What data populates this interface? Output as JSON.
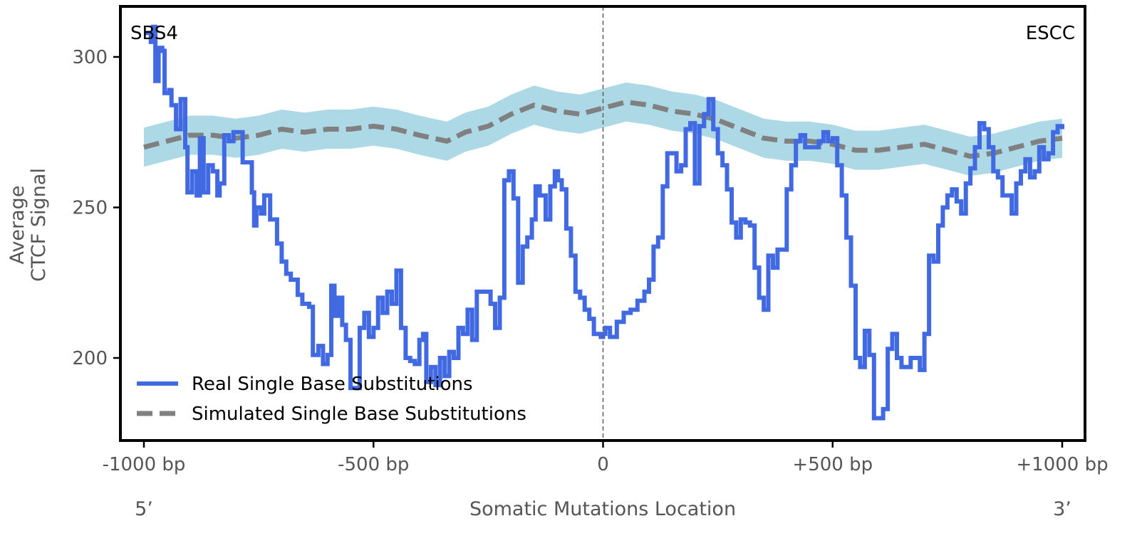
{
  "chart_data": {
    "type": "line",
    "title": "",
    "xlabel": "Somatic Mutations Location",
    "ylabel_lines": [
      "Average",
      "CTCF Signal"
    ],
    "xlim": [
      -1000,
      1000
    ],
    "ylim": [
      172,
      317
    ],
    "x_ticks": [
      -1000,
      -500,
      0,
      500,
      1000
    ],
    "x_tick_labels": [
      "-1000 bp",
      "-500 bp",
      "0",
      "+500 bp",
      "+1000 bp"
    ],
    "y_ticks": [
      200,
      250,
      300
    ],
    "y_tick_labels": [
      "200",
      "250",
      "300"
    ],
    "strand_labels": {
      "left": "5’",
      "right": "3’"
    },
    "corner_labels": {
      "left": "SBS4",
      "right": "ESCC"
    },
    "center_line_x": 0,
    "legend": {
      "position": "lower-left",
      "entries": [
        {
          "label": "Real Single Base Substitutions",
          "color": "#4169e1",
          "style": "solid"
        },
        {
          "label": "Simulated Single Base Substitutions",
          "color": "#808080",
          "style": "dashed"
        }
      ]
    },
    "series": [
      {
        "name": "Real Single Base Substitutions",
        "color": "#4169e1",
        "points": [
          [
            -1000,
            308
          ],
          [
            -985,
            305
          ],
          [
            -980,
            310
          ],
          [
            -975,
            292
          ],
          [
            -968,
            303
          ],
          [
            -960,
            302
          ],
          [
            -955,
            288
          ],
          [
            -945,
            289
          ],
          [
            -940,
            284
          ],
          [
            -930,
            276
          ],
          [
            -920,
            286
          ],
          [
            -910,
            270
          ],
          [
            -905,
            255
          ],
          [
            -895,
            262
          ],
          [
            -885,
            254
          ],
          [
            -878,
            273
          ],
          [
            -870,
            255
          ],
          [
            -860,
            264
          ],
          [
            -850,
            262
          ],
          [
            -840,
            254
          ],
          [
            -835,
            258
          ],
          [
            -825,
            274
          ],
          [
            -815,
            272
          ],
          [
            -805,
            275
          ],
          [
            -790,
            275
          ],
          [
            -785,
            265
          ],
          [
            -770,
            265
          ],
          [
            -765,
            255
          ],
          [
            -760,
            244
          ],
          [
            -755,
            250
          ],
          [
            -745,
            248
          ],
          [
            -738,
            254
          ],
          [
            -725,
            246
          ],
          [
            -710,
            238
          ],
          [
            -700,
            232
          ],
          [
            -690,
            228
          ],
          [
            -680,
            226
          ],
          [
            -665,
            221
          ],
          [
            -655,
            218
          ],
          [
            -640,
            217
          ],
          [
            -632,
            201
          ],
          [
            -620,
            204
          ],
          [
            -610,
            198
          ],
          [
            -600,
            201
          ],
          [
            -592,
            224
          ],
          [
            -585,
            214
          ],
          [
            -577,
            220
          ],
          [
            -568,
            211
          ],
          [
            -560,
            206
          ],
          [
            -550,
            190
          ],
          [
            -540,
            190
          ],
          [
            -530,
            210
          ],
          [
            -520,
            215
          ],
          [
            -510,
            207
          ],
          [
            -500,
            210
          ],
          [
            -490,
            220
          ],
          [
            -480,
            215
          ],
          [
            -470,
            222
          ],
          [
            -460,
            218
          ],
          [
            -450,
            229
          ],
          [
            -440,
            210
          ],
          [
            -430,
            200
          ],
          [
            -420,
            199
          ],
          [
            -410,
            198
          ],
          [
            -400,
            206
          ],
          [
            -392,
            208
          ],
          [
            -385,
            192
          ],
          [
            -375,
            197
          ],
          [
            -365,
            191
          ],
          [
            -355,
            200
          ],
          [
            -345,
            194
          ],
          [
            -335,
            202
          ],
          [
            -325,
            200
          ],
          [
            -315,
            210
          ],
          [
            -305,
            208
          ],
          [
            -295,
            216
          ],
          [
            -285,
            206
          ],
          [
            -275,
            222
          ],
          [
            -265,
            222
          ],
          [
            -255,
            222
          ],
          [
            -245,
            218
          ],
          [
            -235,
            210
          ],
          [
            -225,
            220
          ],
          [
            -215,
            259
          ],
          [
            -205,
            262
          ],
          [
            -195,
            253
          ],
          [
            -185,
            225
          ],
          [
            -175,
            237
          ],
          [
            -165,
            240
          ],
          [
            -155,
            246
          ],
          [
            -147,
            257
          ],
          [
            -138,
            254
          ],
          [
            -125,
            246
          ],
          [
            -115,
            257
          ],
          [
            -105,
            262
          ],
          [
            -98,
            259
          ],
          [
            -90,
            256
          ],
          [
            -80,
            243
          ],
          [
            -70,
            234
          ],
          [
            -60,
            222
          ],
          [
            -50,
            220
          ],
          [
            -40,
            216
          ],
          [
            -30,
            213
          ],
          [
            -20,
            208
          ],
          [
            -10,
            208
          ],
          [
            -5,
            207
          ],
          [
            0,
            208
          ],
          [
            5,
            210
          ],
          [
            15,
            207
          ],
          [
            30,
            212
          ],
          [
            45,
            215
          ],
          [
            60,
            216
          ],
          [
            75,
            219
          ],
          [
            90,
            222
          ],
          [
            100,
            226
          ],
          [
            110,
            237
          ],
          [
            120,
            240
          ],
          [
            130,
            257
          ],
          [
            140,
            268
          ],
          [
            150,
            268
          ],
          [
            160,
            262
          ],
          [
            170,
            264
          ],
          [
            180,
            276
          ],
          [
            190,
            278
          ],
          [
            200,
            258
          ],
          [
            210,
            277
          ],
          [
            220,
            281
          ],
          [
            230,
            286
          ],
          [
            240,
            276
          ],
          [
            250,
            268
          ],
          [
            260,
            264
          ],
          [
            270,
            256
          ],
          [
            280,
            245
          ],
          [
            290,
            240
          ],
          [
            300,
            246
          ],
          [
            310,
            245
          ],
          [
            320,
            244
          ],
          [
            330,
            230
          ],
          [
            340,
            220
          ],
          [
            350,
            216
          ],
          [
            360,
            234
          ],
          [
            370,
            230
          ],
          [
            380,
            236
          ],
          [
            390,
            236
          ],
          [
            400,
            256
          ],
          [
            410,
            264
          ],
          [
            420,
            272
          ],
          [
            430,
            274
          ],
          [
            440,
            270
          ],
          [
            450,
            270
          ],
          [
            460,
            270
          ],
          [
            470,
            272
          ],
          [
            480,
            275
          ],
          [
            490,
            272
          ],
          [
            500,
            273
          ],
          [
            510,
            264
          ],
          [
            520,
            254
          ],
          [
            530,
            240
          ],
          [
            540,
            224
          ],
          [
            550,
            200
          ],
          [
            560,
            197
          ],
          [
            570,
            209
          ],
          [
            580,
            201
          ],
          [
            590,
            180
          ],
          [
            600,
            180
          ],
          [
            610,
            183
          ],
          [
            620,
            203
          ],
          [
            630,
            208
          ],
          [
            640,
            200
          ],
          [
            650,
            197
          ],
          [
            660,
            197
          ],
          [
            670,
            200
          ],
          [
            680,
            200
          ],
          [
            690,
            196
          ],
          [
            700,
            208
          ],
          [
            710,
            234
          ],
          [
            720,
            232
          ],
          [
            730,
            244
          ],
          [
            740,
            250
          ],
          [
            750,
            254
          ],
          [
            760,
            256
          ],
          [
            770,
            252
          ],
          [
            780,
            248
          ],
          [
            790,
            258
          ],
          [
            800,
            263
          ],
          [
            810,
            270
          ],
          [
            820,
            278
          ],
          [
            830,
            276
          ],
          [
            840,
            270
          ],
          [
            850,
            262
          ],
          [
            860,
            260
          ],
          [
            870,
            254
          ],
          [
            880,
            254
          ],
          [
            890,
            248
          ],
          [
            900,
            258
          ],
          [
            910,
            262
          ],
          [
            920,
            266
          ],
          [
            930,
            260
          ],
          [
            940,
            262
          ],
          [
            950,
            270
          ],
          [
            960,
            266
          ],
          [
            970,
            268
          ],
          [
            980,
            275
          ],
          [
            990,
            277
          ],
          [
            1000,
            276
          ]
        ]
      },
      {
        "name": "Simulated Single Base Substitutions",
        "color": "#808080",
        "points": [
          [
            -1000,
            270
          ],
          [
            -950,
            272
          ],
          [
            -900,
            274
          ],
          [
            -850,
            274
          ],
          [
            -800,
            273
          ],
          [
            -750,
            274
          ],
          [
            -700,
            276
          ],
          [
            -650,
            275
          ],
          [
            -600,
            276
          ],
          [
            -550,
            276
          ],
          [
            -500,
            277
          ],
          [
            -450,
            276
          ],
          [
            -400,
            274
          ],
          [
            -370,
            273
          ],
          [
            -340,
            272
          ],
          [
            -300,
            275
          ],
          [
            -250,
            277
          ],
          [
            -200,
            281
          ],
          [
            -150,
            284
          ],
          [
            -100,
            282
          ],
          [
            -50,
            281
          ],
          [
            0,
            283
          ],
          [
            50,
            285
          ],
          [
            100,
            284
          ],
          [
            150,
            282
          ],
          [
            200,
            281
          ],
          [
            250,
            279
          ],
          [
            300,
            276
          ],
          [
            350,
            273
          ],
          [
            400,
            272
          ],
          [
            450,
            272
          ],
          [
            500,
            271
          ],
          [
            550,
            269
          ],
          [
            600,
            269
          ],
          [
            650,
            270
          ],
          [
            700,
            271
          ],
          [
            750,
            269
          ],
          [
            800,
            267
          ],
          [
            850,
            268
          ],
          [
            900,
            270
          ],
          [
            950,
            272
          ],
          [
            1000,
            273
          ]
        ],
        "band_halfwidth": 6.5
      }
    ]
  }
}
